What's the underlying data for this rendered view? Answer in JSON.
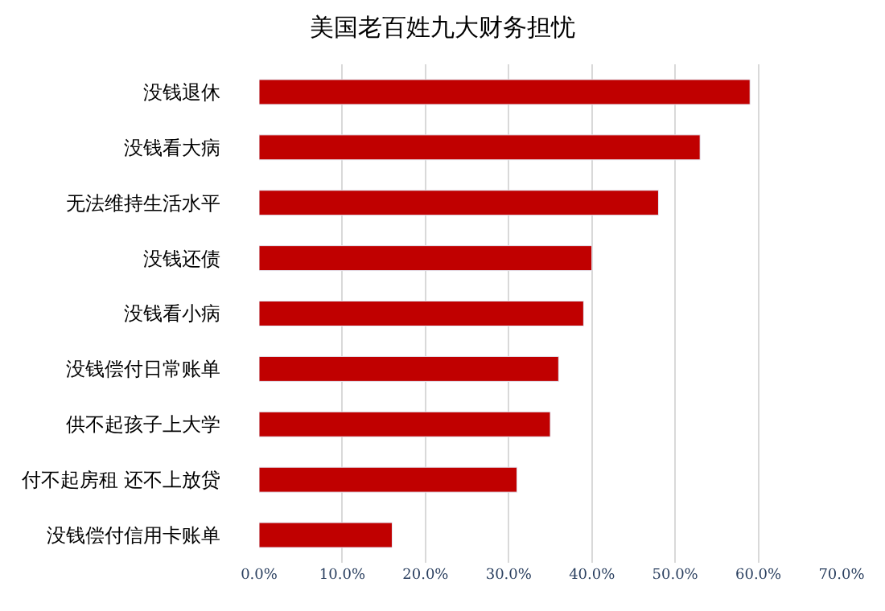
{
  "chart_data": {
    "type": "bar",
    "orientation": "horizontal",
    "title": "美国老百姓九大财务担忧",
    "categories": [
      "没钱退休",
      "没钱看大病",
      "无法维持生活水平",
      "没钱还债",
      "没钱看小病",
      "没钱偿付日常账单",
      "供不起孩子上大学",
      "付不起房租 还不上放贷",
      "没钱偿付信用卡账单"
    ],
    "values": [
      59,
      53,
      48,
      40,
      39,
      36,
      35,
      31,
      16
    ],
    "color": "#c00000",
    "xlim": [
      0,
      70
    ],
    "xticks": [
      {
        "value": 0,
        "label": "0.0%"
      },
      {
        "value": 10,
        "label": "10.0%"
      },
      {
        "value": 20,
        "label": "20.0%"
      },
      {
        "value": 30,
        "label": "30.0%"
      },
      {
        "value": 40,
        "label": "40.0%"
      },
      {
        "value": 50,
        "label": "50.0%"
      },
      {
        "value": 60,
        "label": "60.0%"
      },
      {
        "value": 70,
        "label": "70.0%"
      }
    ],
    "grid": "x",
    "legend": false
  }
}
